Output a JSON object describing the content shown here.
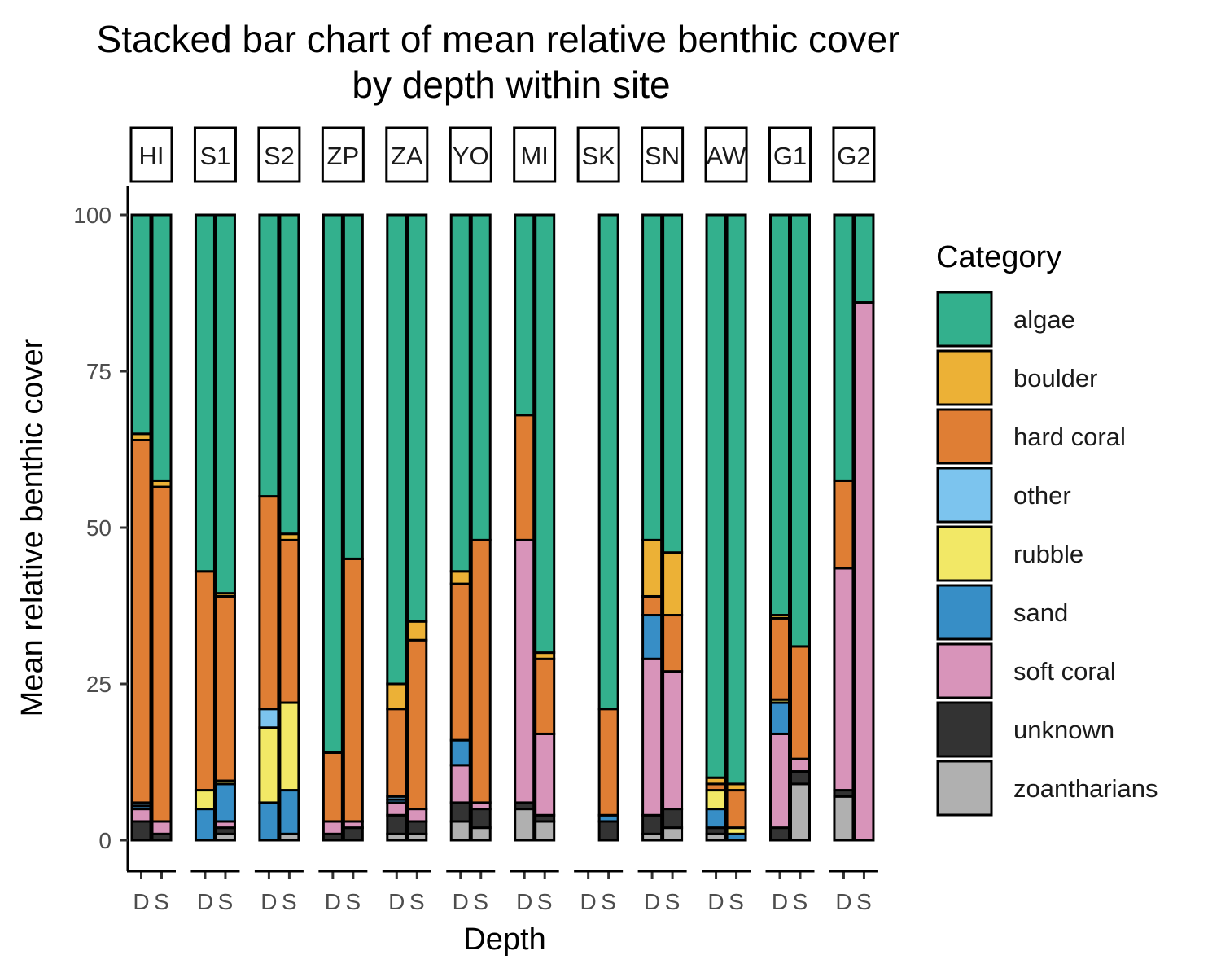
{
  "chart_data": {
    "type": "bar",
    "stacked": true,
    "title": "Stacked bar chart of mean relative benthic cover",
    "title_line2": "by depth within site",
    "xlabel": "Depth",
    "ylabel": "Mean relative benthic cover",
    "ylim": [
      0,
      100
    ],
    "yticks": [
      0,
      25,
      50,
      75,
      100
    ],
    "depths": [
      "D",
      "S"
    ],
    "legend": {
      "title": "Category",
      "position": "right",
      "entries": [
        {
          "name": "algae",
          "color": "#33b08d"
        },
        {
          "name": "boulder",
          "color": "#ecb136"
        },
        {
          "name": "hard coral",
          "color": "#df7e34"
        },
        {
          "name": "other",
          "color": "#7cc4ee"
        },
        {
          "name": "rubble",
          "color": "#f2e866"
        },
        {
          "name": "sand",
          "color": "#378ec6"
        },
        {
          "name": "soft coral",
          "color": "#d894ba"
        },
        {
          "name": "unknown",
          "color": "#333333"
        },
        {
          "name": "zoantharians",
          "color": "#b0b0b0"
        }
      ]
    },
    "stack_order_bottom_to_top": [
      "zoantharians",
      "unknown",
      "soft coral",
      "sand",
      "rubble",
      "other",
      "hard coral",
      "boulder",
      "algae"
    ],
    "facets": [
      {
        "site": "HI",
        "bars": {
          "D": {
            "zoantharians": 0,
            "unknown": 3,
            "soft coral": 2,
            "sand": 0.5,
            "rubble": 0,
            "other": 0.5,
            "hard coral": 58,
            "boulder": 1,
            "algae": 35
          },
          "S": {
            "zoantharians": 0,
            "unknown": 1,
            "soft coral": 2,
            "sand": 0,
            "rubble": 0,
            "other": 0,
            "hard coral": 53.5,
            "boulder": 1,
            "algae": 42.5
          }
        }
      },
      {
        "site": "S1",
        "bars": {
          "D": {
            "zoantharians": 0,
            "unknown": 0,
            "soft coral": 0,
            "sand": 5,
            "rubble": 3,
            "other": 0,
            "hard coral": 35,
            "boulder": 0,
            "algae": 57
          },
          "S": {
            "zoantharians": 1,
            "unknown": 1,
            "soft coral": 1,
            "sand": 6,
            "rubble": 0.5,
            "other": 0,
            "hard coral": 29.5,
            "boulder": 0.5,
            "algae": 60.5
          }
        }
      },
      {
        "site": "S2",
        "bars": {
          "D": {
            "zoantharians": 0,
            "unknown": 0,
            "soft coral": 0,
            "sand": 6,
            "rubble": 12,
            "other": 3,
            "hard coral": 34,
            "boulder": 0,
            "algae": 45
          },
          "S": {
            "zoantharians": 1,
            "unknown": 0,
            "soft coral": 0,
            "sand": 7,
            "rubble": 14,
            "other": 0,
            "hard coral": 26,
            "boulder": 1,
            "algae": 51
          }
        }
      },
      {
        "site": "ZP",
        "bars": {
          "D": {
            "zoantharians": 0,
            "unknown": 1,
            "soft coral": 2,
            "sand": 0,
            "rubble": 0,
            "other": 0,
            "hard coral": 11,
            "boulder": 0,
            "algae": 86
          },
          "S": {
            "zoantharians": 0,
            "unknown": 2,
            "soft coral": 1,
            "sand": 0,
            "rubble": 0,
            "other": 0,
            "hard coral": 42,
            "boulder": 0,
            "algae": 55
          }
        }
      },
      {
        "site": "ZA",
        "bars": {
          "D": {
            "zoantharians": 1,
            "unknown": 3,
            "soft coral": 2,
            "sand": 0.5,
            "rubble": 0,
            "other": 0.5,
            "hard coral": 14,
            "boulder": 4,
            "algae": 75
          },
          "S": {
            "zoantharians": 1,
            "unknown": 2,
            "soft coral": 2,
            "sand": 0,
            "rubble": 0,
            "other": 0,
            "hard coral": 27,
            "boulder": 3,
            "algae": 65
          }
        }
      },
      {
        "site": "YO",
        "bars": {
          "D": {
            "zoantharians": 3,
            "unknown": 3,
            "soft coral": 6,
            "sand": 4,
            "rubble": 0,
            "other": 0,
            "hard coral": 25,
            "boulder": 2,
            "algae": 57
          },
          "S": {
            "zoantharians": 2,
            "unknown": 3,
            "soft coral": 1,
            "sand": 0,
            "rubble": 0,
            "other": 0,
            "hard coral": 42,
            "boulder": 0,
            "algae": 52
          }
        }
      },
      {
        "site": "MI",
        "bars": {
          "D": {
            "zoantharians": 5,
            "unknown": 1,
            "soft coral": 42,
            "sand": 0,
            "rubble": 0,
            "other": 0,
            "hard coral": 20,
            "boulder": 0,
            "algae": 32
          },
          "S": {
            "zoantharians": 3,
            "unknown": 1,
            "soft coral": 13,
            "sand": 0,
            "rubble": 0,
            "other": 0,
            "hard coral": 12,
            "boulder": 1,
            "algae": 70
          }
        }
      },
      {
        "site": "SK",
        "bars": {
          "S": {
            "zoantharians": 0,
            "unknown": 3,
            "soft coral": 0,
            "sand": 1,
            "rubble": 0,
            "other": 0,
            "hard coral": 17,
            "boulder": 0,
            "algae": 79
          }
        }
      },
      {
        "site": "SN",
        "bars": {
          "D": {
            "zoantharians": 1,
            "unknown": 3,
            "soft coral": 25,
            "sand": 7,
            "rubble": 0,
            "other": 0,
            "hard coral": 3,
            "boulder": 9,
            "algae": 52
          },
          "S": {
            "zoantharians": 2,
            "unknown": 3,
            "soft coral": 22,
            "sand": 0,
            "rubble": 0,
            "other": 0,
            "hard coral": 9,
            "boulder": 10,
            "algae": 54
          }
        }
      },
      {
        "site": "AW",
        "bars": {
          "D": {
            "zoantharians": 1,
            "unknown": 1,
            "soft coral": 0,
            "sand": 3,
            "rubble": 3,
            "other": 0,
            "hard coral": 1,
            "boulder": 1,
            "algae": 90
          },
          "S": {
            "zoantharians": 0,
            "unknown": 0,
            "soft coral": 0,
            "sand": 1,
            "rubble": 1,
            "other": 0,
            "hard coral": 6,
            "boulder": 1,
            "algae": 91
          }
        }
      },
      {
        "site": "G1",
        "bars": {
          "D": {
            "zoantharians": 0,
            "unknown": 2,
            "soft coral": 15,
            "sand": 5,
            "rubble": 0.5,
            "other": 0,
            "hard coral": 13,
            "boulder": 0.5,
            "algae": 64
          },
          "S": {
            "zoantharians": 9,
            "unknown": 2,
            "soft coral": 2,
            "sand": 0,
            "rubble": 0,
            "other": 0,
            "hard coral": 18,
            "boulder": 0,
            "algae": 69
          }
        }
      },
      {
        "site": "G2",
        "bars": {
          "D": {
            "zoantharians": 7,
            "unknown": 1,
            "soft coral": 35.5,
            "sand": 0,
            "rubble": 0,
            "other": 0,
            "hard coral": 14,
            "boulder": 0,
            "algae": 42.5
          },
          "S": {
            "zoantharians": 0,
            "unknown": 0,
            "soft coral": 86,
            "sand": 0,
            "rubble": 0,
            "other": 0,
            "hard coral": 0,
            "boulder": 0,
            "algae": 14
          }
        }
      }
    ]
  }
}
